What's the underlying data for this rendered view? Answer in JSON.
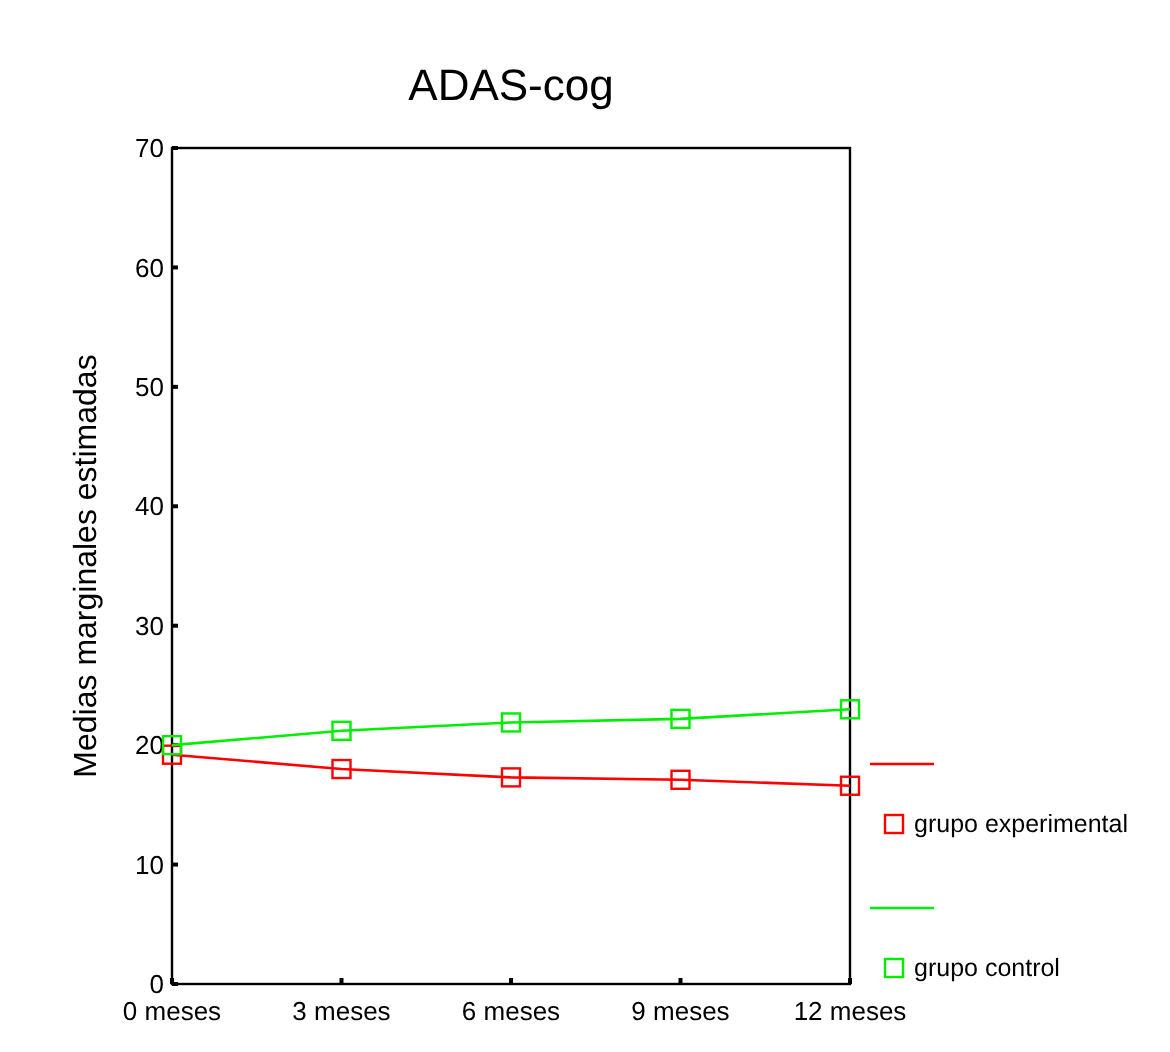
{
  "chart_data": {
    "type": "line",
    "title": "ADAS-cog",
    "ylabel": "Medias marginales estimadas",
    "categories": [
      "0 meses",
      "3 meses",
      "6 meses",
      "9 meses",
      "12 meses"
    ],
    "series": [
      {
        "name": "grupo experimental",
        "color": "#ff0000",
        "values": [
          19.2,
          18.0,
          17.3,
          17.1,
          16.6
        ]
      },
      {
        "name": "grupo control",
        "color": "#00ee00",
        "values": [
          20.0,
          21.2,
          21.9,
          22.2,
          23.0
        ]
      }
    ],
    "ylim": [
      0,
      70
    ],
    "yticks": [
      0,
      10,
      20,
      30,
      40,
      50,
      60,
      70
    ],
    "grid": false,
    "legend": "right",
    "marker": "square",
    "line_style": "solid"
  }
}
